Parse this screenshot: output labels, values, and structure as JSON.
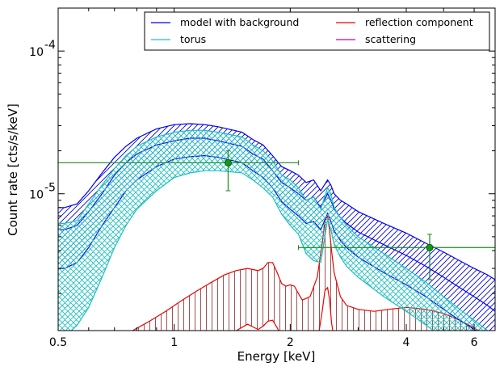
{
  "chart_data": {
    "type": "line",
    "xlabel": "Energy [keV]",
    "ylabel": "Count rate [cts/s/keV]",
    "xscale": "log",
    "yscale": "log",
    "xlim": [
      0.5,
      6.8
    ],
    "ylim": [
      1.1e-06,
      0.0002
    ],
    "x_ticks": [
      {
        "value": 0.5,
        "label": "0.5"
      },
      {
        "value": 1,
        "label": "1"
      },
      {
        "value": 2,
        "label": "2"
      },
      {
        "value": 4,
        "label": "4"
      },
      {
        "value": 6,
        "label": "6"
      }
    ],
    "y_ticks": [
      {
        "value": 1e-05,
        "base": "10",
        "exp": "-5"
      },
      {
        "value": 0.0001,
        "base": "10",
        "exp": "-4"
      }
    ],
    "legend_position": "top-right",
    "legend": [
      {
        "label": "model with background",
        "color": "#0000ee"
      },
      {
        "label": "torus",
        "color": "#1fbfbf"
      },
      {
        "label": "reflection component",
        "color": "#ee0000"
      },
      {
        "label": "scattering",
        "color": "#bf00bf"
      }
    ],
    "series": [
      {
        "name": "model with background",
        "color": "#0000ee",
        "hatch": "diagonal",
        "x": [
          0.5,
          0.52,
          0.56,
          0.6,
          0.65,
          0.7,
          0.75,
          0.8,
          0.9,
          1.0,
          1.1,
          1.2,
          1.3,
          1.5,
          1.6,
          1.7,
          1.8,
          1.9,
          2.0,
          2.1,
          2.2,
          2.3,
          2.4,
          2.5,
          2.55,
          2.6,
          2.7,
          2.8,
          3.0,
          3.5,
          4.0,
          4.5,
          5.0,
          5.5,
          6.0,
          6.5,
          6.8
        ],
        "upper": [
          8e-06,
          8e-06,
          8.5e-06,
          1.05e-05,
          1.4e-05,
          1.8e-05,
          2.15e-05,
          2.45e-05,
          2.85e-05,
          3.05e-05,
          3.1e-05,
          3.05e-05,
          2.95e-05,
          2.7e-05,
          2.4e-05,
          2.2e-05,
          1.85e-05,
          1.55e-05,
          1.45e-05,
          1.35e-05,
          1.2e-05,
          1.25e-05,
          1.05e-05,
          1.25e-05,
          1.15e-05,
          1e-05,
          9e-06,
          8.5e-06,
          7.5e-06,
          6.2e-06,
          5.3e-06,
          4.5e-06,
          3.9e-06,
          3.4e-06,
          3e-06,
          2.7e-06,
          2.5e-06
        ],
        "mid": [
          5.6e-06,
          5.6e-06,
          6e-06,
          7.5e-06,
          1e-05,
          1.35e-05,
          1.65e-05,
          1.9e-05,
          2.2e-05,
          2.35e-05,
          2.45e-05,
          2.45e-05,
          2.35e-05,
          2.15e-05,
          1.9e-05,
          1.75e-05,
          1.45e-05,
          1.2e-05,
          1.1e-05,
          1e-05,
          9e-06,
          9.5e-06,
          8e-06,
          1e-05,
          9e-06,
          7.8e-06,
          6.8e-06,
          6.2e-06,
          5.4e-06,
          4.4e-06,
          3.7e-06,
          3.1e-06,
          2.6e-06,
          2.2e-06,
          1.9e-06,
          1.65e-06,
          1.5e-06
        ],
        "lower": [
          3e-06,
          3e-06,
          3.3e-06,
          4.2e-06,
          6e-06,
          8e-06,
          1.05e-05,
          1.25e-05,
          1.55e-05,
          1.75e-05,
          1.82e-05,
          1.85e-05,
          1.8e-05,
          1.65e-05,
          1.45e-05,
          1.3e-05,
          1.1e-05,
          8.8e-06,
          7.8e-06,
          7e-06,
          6.2e-06,
          6.4e-06,
          5.6e-06,
          7.3e-06,
          6.4e-06,
          5.5e-06,
          4.7e-06,
          4.2e-06,
          3.6e-06,
          2.8e-06,
          2.3e-06,
          1.9e-06,
          1.55e-06,
          1.3e-06,
          1.12e-06,
          1e-06,
          9.5e-07
        ]
      },
      {
        "name": "torus",
        "color": "#1fbfbf",
        "hatch": "cross",
        "x": [
          0.5,
          0.52,
          0.56,
          0.6,
          0.65,
          0.7,
          0.75,
          0.8,
          0.9,
          1.0,
          1.1,
          1.2,
          1.3,
          1.5,
          1.6,
          1.7,
          1.8,
          1.9,
          2.0,
          2.1,
          2.2,
          2.3,
          2.4,
          2.5,
          2.55,
          2.6,
          2.7,
          2.8,
          3.0,
          3.5,
          4.0,
          4.5,
          5.0,
          5.5,
          6.0,
          6.5,
          6.8
        ],
        "upper": [
          6.2e-06,
          6.2e-06,
          6.5e-06,
          8.5e-06,
          1.15e-05,
          1.5e-05,
          1.85e-05,
          2.15e-05,
          2.5e-05,
          2.7e-05,
          2.78e-05,
          2.78e-05,
          2.7e-05,
          2.5e-05,
          2.2e-05,
          2e-05,
          1.7e-05,
          1.35e-05,
          1.25e-05,
          1.1e-05,
          9e-06,
          9.5e-06,
          7.8e-06,
          1.1e-05,
          1e-05,
          8e-06,
          6.8e-06,
          6e-06,
          5e-06,
          3.8e-06,
          3e-06,
          2.4e-06,
          1.9e-06,
          1.55e-06,
          1.3e-06,
          1.1e-06,
          1e-06
        ],
        "lower": [
          1e-06,
          1e-06,
          1.2e-06,
          1.6e-06,
          2.6e-06,
          4.2e-06,
          6e-06,
          7.8e-06,
          1.05e-05,
          1.3e-05,
          1.4e-05,
          1.45e-05,
          1.45e-05,
          1.4e-05,
          1.25e-05,
          1.1e-05,
          9.5e-06,
          7.2e-06,
          6e-06,
          5.2e-06,
          3.8e-06,
          3.4e-06,
          3.3e-06,
          6.6e-06,
          5.6e-06,
          4.4e-06,
          3.6e-06,
          3.1e-06,
          2.6e-06,
          1.9e-06,
          1.5e-06,
          1.2e-06,
          9.8e-07,
          8.5e-07,
          7.8e-07,
          7.2e-07,
          7e-07
        ]
      },
      {
        "name": "reflection component",
        "color": "#ee0000",
        "x": [
          0.78,
          0.85,
          0.95,
          1.05,
          1.15,
          1.25,
          1.35,
          1.45,
          1.55,
          1.65,
          1.7,
          1.75,
          1.8,
          1.85,
          1.9,
          1.95,
          2.0,
          2.05,
          2.1,
          2.15,
          2.25,
          2.35,
          2.42,
          2.46,
          2.5,
          2.53,
          2.56,
          2.6,
          2.7,
          2.8,
          3.0,
          3.3,
          3.6,
          4.0,
          4.5,
          5.0,
          5.5,
          6.0,
          6.5,
          6.8
        ],
        "upper": [
          1.1e-06,
          1.25e-06,
          1.5e-06,
          1.8e-06,
          2.1e-06,
          2.4e-06,
          2.7e-06,
          2.9e-06,
          3e-06,
          2.9e-06,
          3e-06,
          3.3e-06,
          3.3e-06,
          2.8e-06,
          2.35e-06,
          2.25e-06,
          2.3e-06,
          2.25e-06,
          2e-06,
          1.8e-06,
          1.9e-06,
          2.6e-06,
          4.5e-06,
          6.5e-06,
          7e-06,
          5.5e-06,
          4e-06,
          2.8e-06,
          1.9e-06,
          1.65e-06,
          1.55e-06,
          1.5e-06,
          1.55e-06,
          1.6e-06,
          1.55e-06,
          1.45e-06,
          1.3e-06,
          1.15e-06,
          1e-06,
          9.5e-07
        ],
        "lower": [
          9e-07,
          8.5e-07,
          8e-07,
          8.5e-07,
          9e-07,
          9.5e-07,
          1e-06,
          1.1e-06,
          1.22e-06,
          1.12e-06,
          1.18e-06,
          1.28e-06,
          1.3e-06,
          1.15e-06,
          1e-06,
          9e-07,
          9e-07,
          9.2e-07,
          8.8e-07,
          8.5e-07,
          8.5e-07,
          9e-07,
          1.5e-06,
          2.1e-06,
          2.2e-06,
          1.8e-06,
          1.25e-06,
          9.5e-07,
          8.5e-07,
          8.2e-07,
          8.2e-07,
          8.2e-07,
          8.5e-07,
          9e-07,
          9e-07,
          8.8e-07,
          8.5e-07,
          8e-07,
          7.8e-07,
          7.5e-07
        ]
      },
      {
        "name": "scattering",
        "color": "#bf00bf",
        "x": [
          0.9,
          1.2,
          1.5,
          1.8
        ],
        "values": [
          1.05e-06,
          1.1e-06,
          1.05e-06,
          1e-06
        ]
      }
    ],
    "data_points": [
      {
        "x": 1.38,
        "y": 1.65e-05,
        "xerr": [
          0.5,
          2.1
        ],
        "yerr": [
          1.05e-05,
          2e-05
        ],
        "color": "#1a8c1a"
      },
      {
        "x": 4.6,
        "y": 4.2e-06,
        "xerr": [
          2.1,
          6.8
        ],
        "yerr": [
          2.5e-06,
          5.2e-06
        ],
        "color": "#1a8c1a"
      }
    ]
  }
}
